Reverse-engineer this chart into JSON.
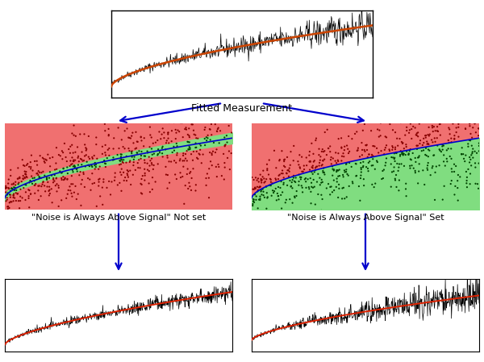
{
  "bg_color": "#ffffff",
  "top_panel": {
    "signal_color": "#cc4400",
    "noise_color": "black",
    "seed": 42
  },
  "middle_left": {
    "bg_red": "#f07070",
    "bg_green": "#80dd80",
    "signal_color": "#0000cc",
    "dot_color_red": "#880000",
    "dot_color_green": "#004400",
    "seed": 10
  },
  "middle_right": {
    "bg_red": "#f07070",
    "bg_green": "#80dd80",
    "signal_color": "#0000cc",
    "dot_color_red": "#880000",
    "dot_color_green": "#004400",
    "seed": 20
  },
  "bottom_left": {
    "signal_color": "#dd2200",
    "noise_color": "black",
    "seed": 55
  },
  "bottom_right": {
    "signal_color": "#dd2200",
    "noise_color": "black",
    "seed": 77
  },
  "label_not_set": "\"Noise is Always Above Signal\" Not set",
  "label_set": "\"Noise is Always Above Signal\" Set",
  "label_fitted": "Fitted Measurement",
  "arrow_color": "#0000cc",
  "label_fontsize": 9
}
